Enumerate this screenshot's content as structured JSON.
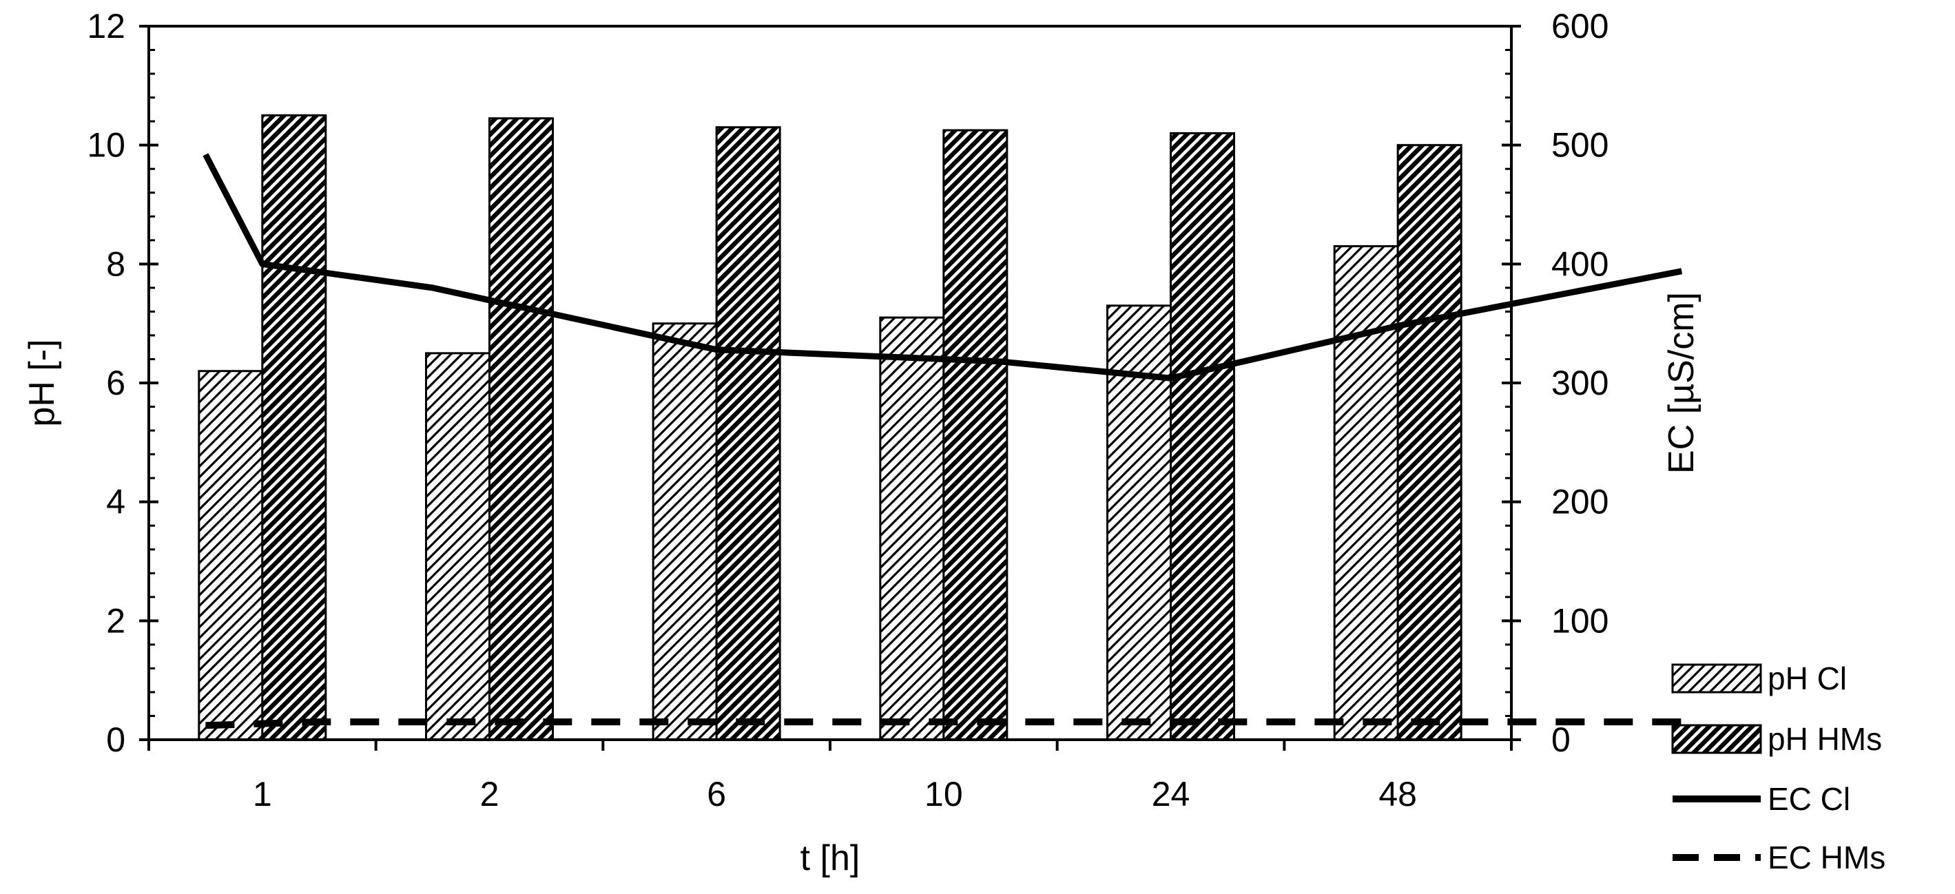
{
  "chart_data": {
    "type": "bar",
    "categories": [
      "1",
      "2",
      "6",
      "10",
      "24",
      "48"
    ],
    "xlabel": "t [h]",
    "ylabel": "pH [-]",
    "y2label": "EC [µS/cm]",
    "ylim": [
      0,
      12
    ],
    "y2lim": [
      0,
      600
    ],
    "yticks": [
      "0",
      "2",
      "4",
      "6",
      "8",
      "10",
      "12"
    ],
    "y2ticks": [
      "0",
      "100",
      "200",
      "300",
      "400",
      "500",
      "600"
    ],
    "grid": false,
    "legend_position": "bottom-right",
    "series": [
      {
        "name": "pH Cl",
        "type": "bar",
        "axis": "left",
        "pattern": "light-diagonal-hatch",
        "values": [
          6.2,
          6.5,
          7.0,
          7.1,
          7.3,
          8.3
        ]
      },
      {
        "name": "pH HMs",
        "type": "bar",
        "axis": "left",
        "pattern": "dark-diagonal-hatch",
        "values": [
          10.5,
          10.45,
          10.3,
          10.25,
          10.2,
          10.0
        ]
      },
      {
        "name": "EC Cl",
        "type": "line",
        "axis": "right",
        "style": "solid",
        "x": [
          0.25,
          0.5,
          1.25,
          2.5,
          3.75,
          4.5,
          5.5,
          6.75
        ],
        "values": [
          492,
          400,
          380,
          328,
          318,
          304,
          348,
          394
        ]
      },
      {
        "name": "EC HMs",
        "type": "line",
        "axis": "right",
        "style": "dashed",
        "x": [
          0.25,
          0.75,
          6.75
        ],
        "values": [
          12,
          15,
          15
        ]
      }
    ]
  }
}
